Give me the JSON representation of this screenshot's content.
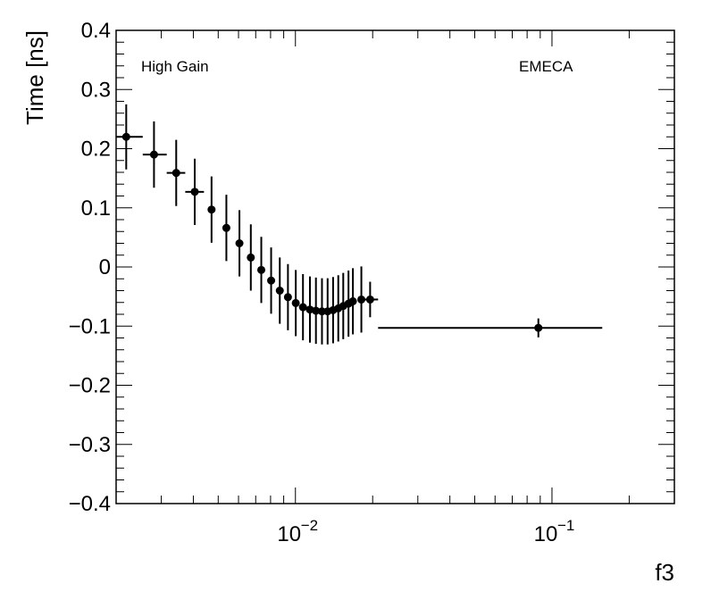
{
  "chart_data": {
    "type": "scatter",
    "xlabel": "f3",
    "ylabel": "Time [ns]",
    "xscale": "log",
    "xlim": [
      0.002,
      0.3
    ],
    "ylim": [
      -0.4,
      0.4
    ],
    "y_ticks": [
      {
        "value": 0.4,
        "label": "0.4"
      },
      {
        "value": 0.3,
        "label": "0.3"
      },
      {
        "value": 0.2,
        "label": "0.2"
      },
      {
        "value": 0.1,
        "label": "0.1"
      },
      {
        "value": 0.0,
        "label": "0"
      },
      {
        "value": -0.1,
        "label": "−0.1"
      },
      {
        "value": -0.2,
        "label": "−0.2"
      },
      {
        "value": -0.3,
        "label": "−0.3"
      },
      {
        "value": -0.4,
        "label": "−0.4"
      }
    ],
    "x_ticks": [
      {
        "value": 0.01,
        "base": "10",
        "exp": "−2"
      },
      {
        "value": 0.1,
        "base": "10",
        "exp": "−1"
      }
    ],
    "annotations": {
      "left": "High Gain",
      "right": "EMECA"
    },
    "marker_color": "#000000",
    "points": [
      {
        "x": 0.00219,
        "y": 0.22,
        "xlo": 0.002,
        "xhi": 0.00254,
        "yerr": 0.055
      },
      {
        "x": 0.00281,
        "y": 0.19,
        "xlo": 0.00254,
        "xhi": 0.00315,
        "yerr": 0.056
      },
      {
        "x": 0.00343,
        "y": 0.159,
        "xlo": 0.00315,
        "xhi": 0.00372,
        "yerr": 0.056
      },
      {
        "x": 0.00405,
        "y": 0.127,
        "xlo": 0.00372,
        "xhi": 0.0044,
        "yerr": 0.056
      },
      {
        "x": 0.00471,
        "y": 0.097,
        "yerr": 0.056
      },
      {
        "x": 0.00538,
        "y": 0.066,
        "yerr": 0.056
      },
      {
        "x": 0.00605,
        "y": 0.04,
        "yerr": 0.056
      },
      {
        "x": 0.0067,
        "y": 0.016,
        "yerr": 0.056
      },
      {
        "x": 0.00736,
        "y": -0.005,
        "yerr": 0.056
      },
      {
        "x": 0.00804,
        "y": -0.023,
        "yerr": 0.056
      },
      {
        "x": 0.00869,
        "y": -0.04,
        "yerr": 0.056
      },
      {
        "x": 0.00935,
        "y": -0.051,
        "yerr": 0.056
      },
      {
        "x": 0.01003,
        "y": -0.061,
        "yerr": 0.056
      },
      {
        "x": 0.0107,
        "y": -0.068,
        "yerr": 0.056
      },
      {
        "x": 0.01139,
        "y": -0.072,
        "yerr": 0.056
      },
      {
        "x": 0.01202,
        "y": -0.074,
        "yerr": 0.056
      },
      {
        "x": 0.01269,
        "y": -0.075,
        "yerr": 0.056
      },
      {
        "x": 0.01335,
        "y": -0.075,
        "yerr": 0.056
      },
      {
        "x": 0.01402,
        "y": -0.073,
        "yerr": 0.056
      },
      {
        "x": 0.01469,
        "y": -0.07,
        "yerr": 0.056
      },
      {
        "x": 0.01536,
        "y": -0.066,
        "yerr": 0.056
      },
      {
        "x": 0.0161,
        "y": -0.062,
        "yerr": 0.056
      },
      {
        "x": 0.01675,
        "y": -0.058,
        "yerr": 0.056
      },
      {
        "x": 0.01807,
        "y": -0.055,
        "yerr": 0.056
      },
      {
        "x": 0.01955,
        "y": -0.055,
        "xlo": 0.01862,
        "xhi": 0.021,
        "yerr": 0.03
      },
      {
        "x": 0.0885,
        "y": -0.103,
        "xlo": 0.021,
        "xhi": 0.157,
        "yerr": 0.016
      }
    ]
  }
}
